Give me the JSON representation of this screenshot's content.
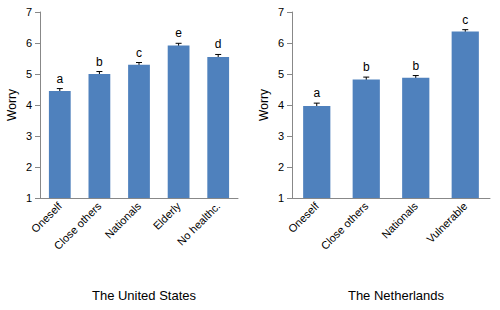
{
  "chart_data": [
    {
      "type": "bar",
      "title": "The United States",
      "ylabel": "Worry",
      "categories": [
        "Oneself",
        "Close others",
        "Nationals",
        "Elderly",
        "No healthc."
      ],
      "values": [
        4.45,
        5.0,
        5.3,
        5.92,
        5.55
      ],
      "errors": [
        0.08,
        0.08,
        0.07,
        0.07,
        0.08
      ],
      "annotations": [
        "a",
        "b",
        "c",
        "e",
        "d"
      ],
      "color": "#4f81bd",
      "ylim": [
        1,
        7
      ],
      "yticks": [
        1,
        2,
        3,
        4,
        5,
        6,
        7
      ],
      "grid": false
    },
    {
      "type": "bar",
      "title": "The Netherlands",
      "ylabel": "Worry",
      "categories": [
        "Oneself",
        "Close others",
        "Nationals",
        "Vulnerable"
      ],
      "values": [
        3.97,
        4.82,
        4.88,
        6.37
      ],
      "errors": [
        0.09,
        0.08,
        0.07,
        0.06
      ],
      "annotations": [
        "a",
        "b",
        "b",
        "c"
      ],
      "color": "#4f81bd",
      "ylim": [
        1,
        7
      ],
      "yticks": [
        1,
        2,
        3,
        4,
        5,
        6,
        7
      ],
      "grid": false
    }
  ]
}
